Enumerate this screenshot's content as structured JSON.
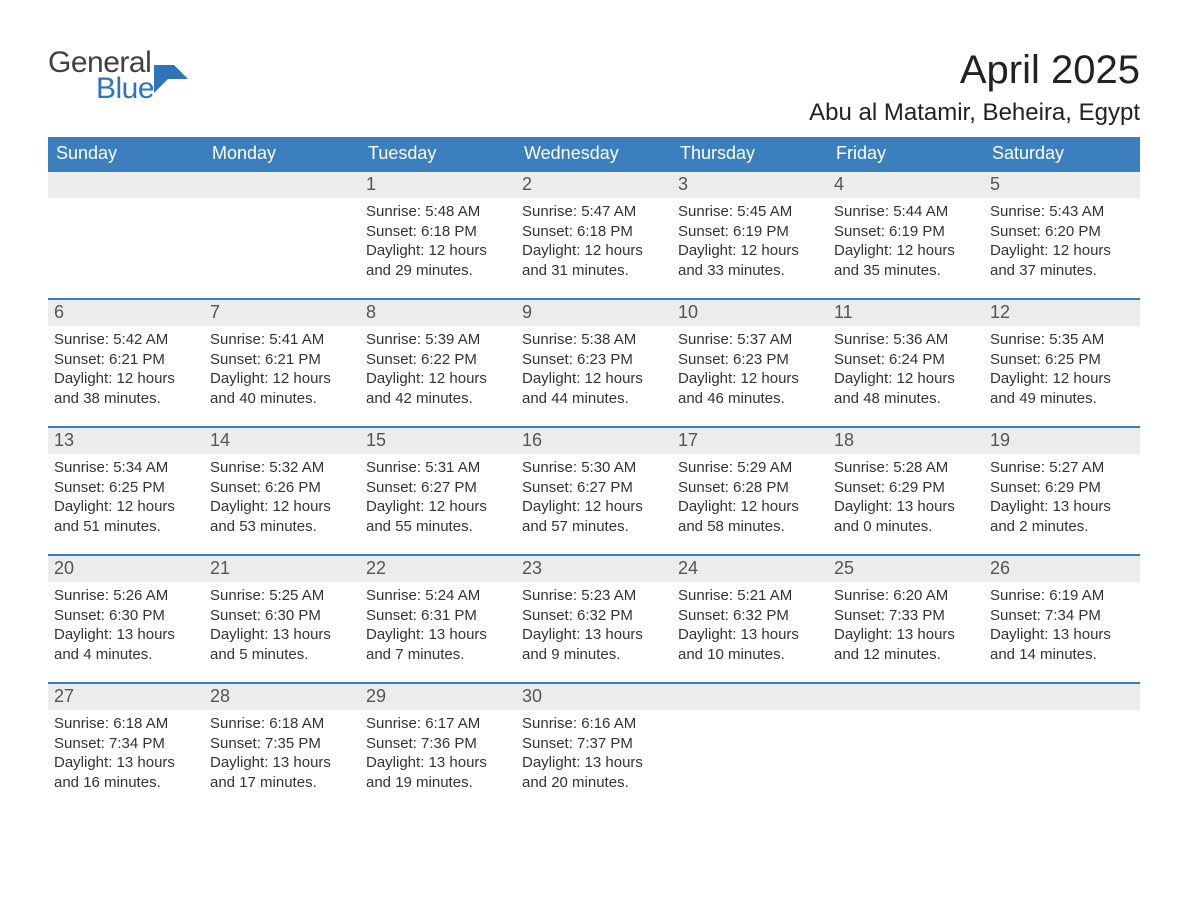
{
  "brand": {
    "word1": "General",
    "word2": "Blue"
  },
  "title": "April 2025",
  "location": "Abu al Matamir, Beheira, Egypt",
  "colors": {
    "header_bg": "#3b7fbf",
    "header_text": "#ffffff",
    "band_bg": "#ececec",
    "border": "#3b7fbf",
    "brand_blue": "#2d74b8",
    "text": "#333333",
    "background": "#ffffff"
  },
  "typography": {
    "title_fontsize": 40,
    "location_fontsize": 24,
    "header_fontsize": 18,
    "daynum_fontsize": 18,
    "body_fontsize": 15
  },
  "day_headers": [
    "Sunday",
    "Monday",
    "Tuesday",
    "Wednesday",
    "Thursday",
    "Friday",
    "Saturday"
  ],
  "labels": {
    "sunrise": "Sunrise: ",
    "sunset": "Sunset: ",
    "daylight": "Daylight: "
  },
  "weeks": [
    [
      null,
      null,
      {
        "n": "1",
        "sunrise": "5:48 AM",
        "sunset": "6:18 PM",
        "daylight": "12 hours and 29 minutes."
      },
      {
        "n": "2",
        "sunrise": "5:47 AM",
        "sunset": "6:18 PM",
        "daylight": "12 hours and 31 minutes."
      },
      {
        "n": "3",
        "sunrise": "5:45 AM",
        "sunset": "6:19 PM",
        "daylight": "12 hours and 33 minutes."
      },
      {
        "n": "4",
        "sunrise": "5:44 AM",
        "sunset": "6:19 PM",
        "daylight": "12 hours and 35 minutes."
      },
      {
        "n": "5",
        "sunrise": "5:43 AM",
        "sunset": "6:20 PM",
        "daylight": "12 hours and 37 minutes."
      }
    ],
    [
      {
        "n": "6",
        "sunrise": "5:42 AM",
        "sunset": "6:21 PM",
        "daylight": "12 hours and 38 minutes."
      },
      {
        "n": "7",
        "sunrise": "5:41 AM",
        "sunset": "6:21 PM",
        "daylight": "12 hours and 40 minutes."
      },
      {
        "n": "8",
        "sunrise": "5:39 AM",
        "sunset": "6:22 PM",
        "daylight": "12 hours and 42 minutes."
      },
      {
        "n": "9",
        "sunrise": "5:38 AM",
        "sunset": "6:23 PM",
        "daylight": "12 hours and 44 minutes."
      },
      {
        "n": "10",
        "sunrise": "5:37 AM",
        "sunset": "6:23 PM",
        "daylight": "12 hours and 46 minutes."
      },
      {
        "n": "11",
        "sunrise": "5:36 AM",
        "sunset": "6:24 PM",
        "daylight": "12 hours and 48 minutes."
      },
      {
        "n": "12",
        "sunrise": "5:35 AM",
        "sunset": "6:25 PM",
        "daylight": "12 hours and 49 minutes."
      }
    ],
    [
      {
        "n": "13",
        "sunrise": "5:34 AM",
        "sunset": "6:25 PM",
        "daylight": "12 hours and 51 minutes."
      },
      {
        "n": "14",
        "sunrise": "5:32 AM",
        "sunset": "6:26 PM",
        "daylight": "12 hours and 53 minutes."
      },
      {
        "n": "15",
        "sunrise": "5:31 AM",
        "sunset": "6:27 PM",
        "daylight": "12 hours and 55 minutes."
      },
      {
        "n": "16",
        "sunrise": "5:30 AM",
        "sunset": "6:27 PM",
        "daylight": "12 hours and 57 minutes."
      },
      {
        "n": "17",
        "sunrise": "5:29 AM",
        "sunset": "6:28 PM",
        "daylight": "12 hours and 58 minutes."
      },
      {
        "n": "18",
        "sunrise": "5:28 AM",
        "sunset": "6:29 PM",
        "daylight": "13 hours and 0 minutes."
      },
      {
        "n": "19",
        "sunrise": "5:27 AM",
        "sunset": "6:29 PM",
        "daylight": "13 hours and 2 minutes."
      }
    ],
    [
      {
        "n": "20",
        "sunrise": "5:26 AM",
        "sunset": "6:30 PM",
        "daylight": "13 hours and 4 minutes."
      },
      {
        "n": "21",
        "sunrise": "5:25 AM",
        "sunset": "6:30 PM",
        "daylight": "13 hours and 5 minutes."
      },
      {
        "n": "22",
        "sunrise": "5:24 AM",
        "sunset": "6:31 PM",
        "daylight": "13 hours and 7 minutes."
      },
      {
        "n": "23",
        "sunrise": "5:23 AM",
        "sunset": "6:32 PM",
        "daylight": "13 hours and 9 minutes."
      },
      {
        "n": "24",
        "sunrise": "5:21 AM",
        "sunset": "6:32 PM",
        "daylight": "13 hours and 10 minutes."
      },
      {
        "n": "25",
        "sunrise": "6:20 AM",
        "sunset": "7:33 PM",
        "daylight": "13 hours and 12 minutes."
      },
      {
        "n": "26",
        "sunrise": "6:19 AM",
        "sunset": "7:34 PM",
        "daylight": "13 hours and 14 minutes."
      }
    ],
    [
      {
        "n": "27",
        "sunrise": "6:18 AM",
        "sunset": "7:34 PM",
        "daylight": "13 hours and 16 minutes."
      },
      {
        "n": "28",
        "sunrise": "6:18 AM",
        "sunset": "7:35 PM",
        "daylight": "13 hours and 17 minutes."
      },
      {
        "n": "29",
        "sunrise": "6:17 AM",
        "sunset": "7:36 PM",
        "daylight": "13 hours and 19 minutes."
      },
      {
        "n": "30",
        "sunrise": "6:16 AM",
        "sunset": "7:37 PM",
        "daylight": "13 hours and 20 minutes."
      },
      null,
      null,
      null
    ]
  ]
}
